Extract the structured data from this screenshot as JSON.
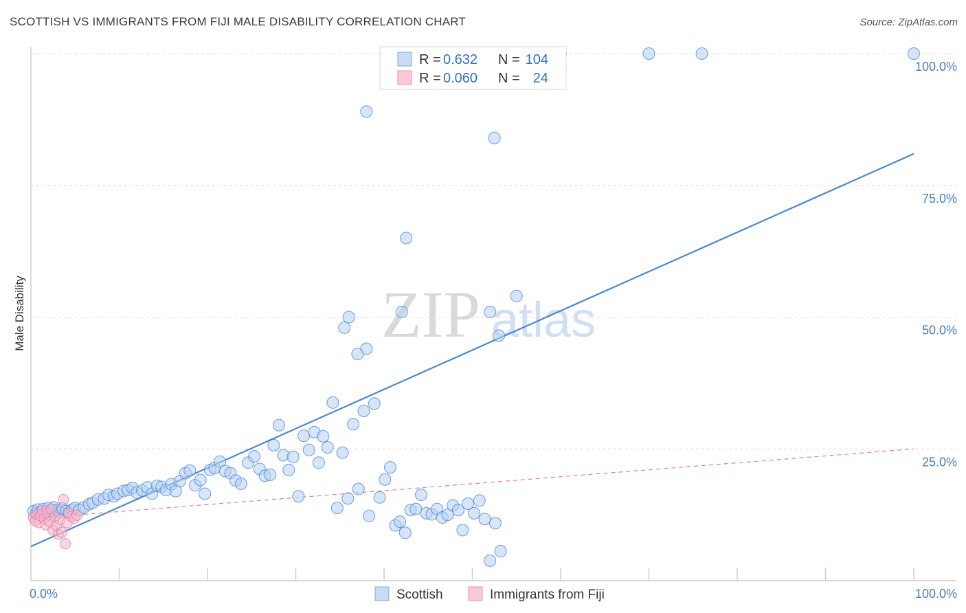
{
  "header": {
    "title": "SCOTTISH VS IMMIGRANTS FROM FIJI MALE DISABILITY CORRELATION CHART",
    "source": "Source: ZipAtlas.com"
  },
  "watermark": {
    "zip": "ZIP",
    "atlas": "atlas"
  },
  "legend": {
    "r_label": "R =",
    "n_label": "N =",
    "rows": [
      {
        "series": "Scottish",
        "r": "0.632",
        "n": "104",
        "color": "#7fa8e6",
        "fill": "#c9dbf5"
      },
      {
        "series": "Immigrants from Fiji",
        "r": "0.060",
        "n": "24",
        "color": "#f090b0",
        "fill": "#f9c9d8"
      }
    ]
  },
  "chart_data": {
    "type": "scatter",
    "title": "SCOTTISH VS IMMIGRANTS FROM FIJI MALE DISABILITY CORRELATION CHART",
    "xlabel": "",
    "ylabel": "Male Disability",
    "xlim": [
      0,
      100
    ],
    "ylim": [
      0,
      100
    ],
    "x_tick_labels": [
      "0.0%",
      "100.0%"
    ],
    "y_ticks": [
      25,
      50,
      75,
      100
    ],
    "y_tick_labels": [
      "25.0%",
      "50.0%",
      "75.0%",
      "100.0%"
    ],
    "grid": true,
    "legend_position": "bottom-center",
    "series": [
      {
        "name": "Scottish",
        "color": "#4a86d8",
        "fill": "#b5cff2",
        "trend": {
          "x": [
            0,
            100
          ],
          "y": [
            6.5,
            81
          ]
        },
        "points": [
          [
            0.3,
            13.2
          ],
          [
            0.6,
            12.8
          ],
          [
            0.8,
            13.5
          ],
          [
            1.0,
            12.6
          ],
          [
            1.2,
            13.0
          ],
          [
            1.4,
            13.6
          ],
          [
            1.6,
            12.9
          ],
          [
            1.8,
            13.1
          ],
          [
            2.0,
            13.8
          ],
          [
            2.2,
            12.7
          ],
          [
            2.4,
            13.3
          ],
          [
            2.6,
            13.9
          ],
          [
            2.8,
            12.5
          ],
          [
            3.0,
            13.4
          ],
          [
            3.3,
            13.0
          ],
          [
            3.6,
            13.7
          ],
          [
            4.0,
            13.2
          ],
          [
            4.3,
            12.9
          ],
          [
            4.7,
            13.5
          ],
          [
            5.0,
            13.8
          ],
          [
            5.5,
            13.4
          ],
          [
            6.0,
            13.9
          ],
          [
            6.6,
            14.5
          ],
          [
            7.0,
            14.8
          ],
          [
            7.6,
            15.4
          ],
          [
            8.3,
            15.6
          ],
          [
            8.8,
            16.3
          ],
          [
            9.4,
            16.0
          ],
          [
            9.8,
            16.5
          ],
          [
            10.5,
            17.0
          ],
          [
            11.0,
            17.2
          ],
          [
            11.5,
            17.6
          ],
          [
            12.0,
            16.7
          ],
          [
            12.6,
            17.1
          ],
          [
            13.2,
            17.7
          ],
          [
            13.7,
            16.5
          ],
          [
            14.3,
            18.0
          ],
          [
            14.8,
            17.8
          ],
          [
            15.3,
            17.2
          ],
          [
            15.9,
            18.3
          ],
          [
            16.4,
            17.0
          ],
          [
            16.9,
            18.9
          ],
          [
            17.5,
            20.4
          ],
          [
            18.0,
            20.9
          ],
          [
            18.6,
            18.1
          ],
          [
            19.2,
            19.1
          ],
          [
            19.7,
            16.5
          ],
          [
            20.3,
            21.0
          ],
          [
            20.8,
            21.4
          ],
          [
            21.4,
            22.6
          ],
          [
            22.0,
            20.8
          ],
          [
            22.6,
            20.4
          ],
          [
            23.2,
            19.0
          ],
          [
            23.8,
            18.4
          ],
          [
            24.6,
            22.4
          ],
          [
            25.3,
            23.6
          ],
          [
            25.9,
            21.2
          ],
          [
            26.5,
            19.9
          ],
          [
            27.1,
            20.1
          ],
          [
            27.5,
            25.7
          ],
          [
            28.1,
            29.5
          ],
          [
            28.6,
            23.8
          ],
          [
            29.2,
            21.0
          ],
          [
            29.7,
            23.5
          ],
          [
            30.3,
            16.0
          ],
          [
            30.9,
            27.5
          ],
          [
            31.5,
            24.8
          ],
          [
            32.1,
            28.2
          ],
          [
            32.6,
            22.4
          ],
          [
            33.1,
            27.4
          ],
          [
            33.6,
            25.3
          ],
          [
            34.2,
            33.8
          ],
          [
            34.7,
            13.8
          ],
          [
            35.3,
            24.3
          ],
          [
            35.9,
            15.6
          ],
          [
            36.5,
            29.7
          ],
          [
            37.1,
            17.4
          ],
          [
            37.7,
            32.2
          ],
          [
            38.3,
            12.3
          ],
          [
            38.9,
            33.6
          ],
          [
            39.5,
            15.8
          ],
          [
            40.1,
            19.2
          ],
          [
            40.7,
            21.5
          ],
          [
            41.3,
            10.5
          ],
          [
            41.8,
            11.2
          ],
          [
            42.4,
            9.1
          ],
          [
            43.0,
            13.4
          ],
          [
            43.6,
            13.6
          ],
          [
            44.2,
            16.3
          ],
          [
            44.8,
            12.8
          ],
          [
            45.4,
            12.6
          ],
          [
            46.0,
            13.6
          ],
          [
            46.6,
            12.0
          ],
          [
            47.2,
            12.5
          ],
          [
            47.8,
            14.3
          ],
          [
            48.4,
            13.4
          ],
          [
            48.9,
            9.6
          ],
          [
            49.5,
            14.6
          ],
          [
            50.2,
            12.8
          ],
          [
            50.8,
            15.2
          ],
          [
            51.4,
            11.7
          ],
          [
            52.0,
            3.8
          ],
          [
            52.6,
            10.9
          ],
          [
            53.2,
            5.6
          ]
        ]
      },
      {
        "name": "Immigrants from Fiji",
        "color": "#e8789e",
        "fill": "#f6b8cc",
        "trend": {
          "x": [
            0,
            100
          ],
          "y": [
            11.8,
            25
          ]
        },
        "points": [
          [
            0.3,
            12.0
          ],
          [
            0.5,
            11.4
          ],
          [
            0.7,
            12.6
          ],
          [
            0.9,
            11.0
          ],
          [
            1.1,
            12.3
          ],
          [
            1.3,
            13.3
          ],
          [
            1.5,
            11.8
          ],
          [
            1.7,
            10.6
          ],
          [
            1.9,
            12.9
          ],
          [
            2.1,
            11.2
          ],
          [
            2.3,
            13.6
          ],
          [
            2.5,
            9.6
          ],
          [
            2.7,
            12.1
          ],
          [
            2.9,
            10.4
          ],
          [
            3.1,
            8.8
          ],
          [
            3.3,
            11.6
          ],
          [
            3.5,
            9.2
          ],
          [
            3.7,
            15.4
          ],
          [
            3.9,
            7.0
          ],
          [
            4.1,
            11.0
          ],
          [
            4.3,
            12.8
          ],
          [
            4.6,
            12.2
          ],
          [
            4.9,
            11.8
          ],
          [
            5.2,
            12.4
          ]
        ]
      }
    ]
  },
  "bottom_legend": {
    "items": [
      "Scottish",
      "Immigrants from Fiji"
    ]
  }
}
